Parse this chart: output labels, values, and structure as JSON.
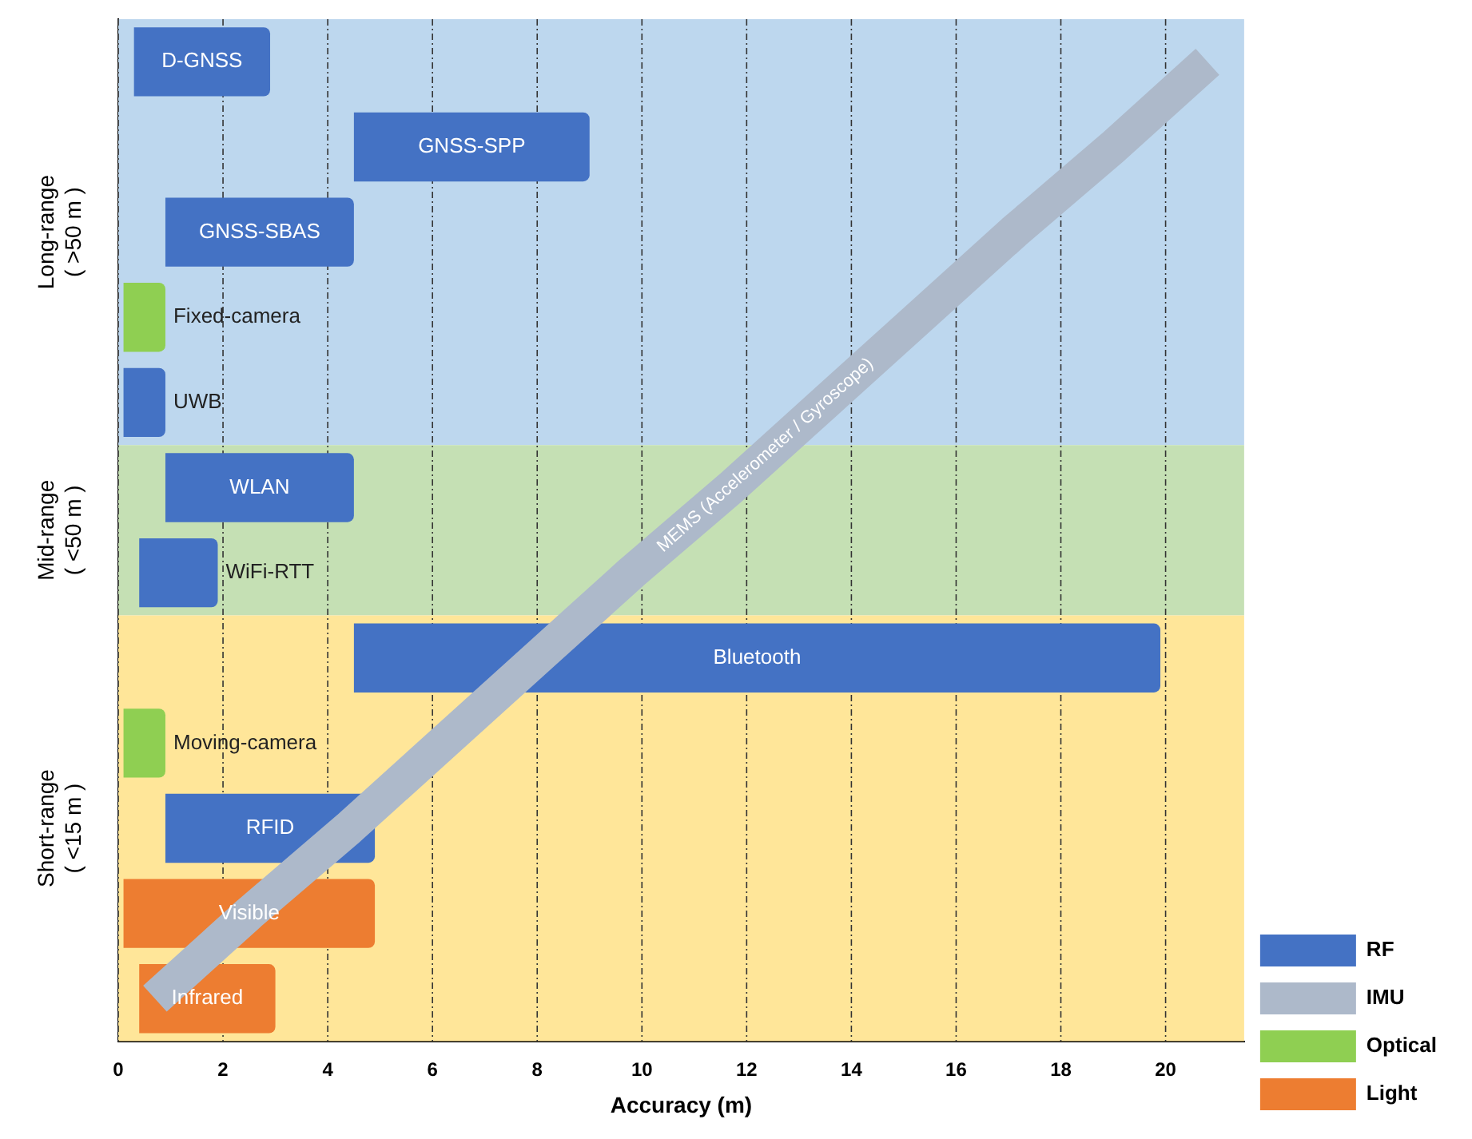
{
  "chart_data": {
    "type": "bar",
    "orientation": "horizontal",
    "xlabel": "Accuracy (m)",
    "categories": [
      "D-GNSS",
      "GNSS-SPP",
      "GNSS-SBAS",
      "Fixed-camera",
      "UWB",
      "WLAN",
      "WiFi-RTT",
      "Bluetooth",
      "Moving-camera",
      "RFID",
      "Visible",
      "Infrared"
    ],
    "series": [
      {
        "name": "RF",
        "color": "#4472c4",
        "base": [
          0.3,
          4.5,
          0.9,
          null,
          0.1,
          0.9,
          0.4,
          4.5,
          null,
          0.9,
          null,
          null
        ],
        "values": [
          2.6,
          4.5,
          3.6,
          null,
          0.8,
          3.6,
          1.5,
          15.4,
          null,
          4.0,
          null,
          null
        ]
      },
      {
        "name": "IMU",
        "color": "#adb9ca",
        "type": "line",
        "values": [
          20.8,
          19.0,
          17.1,
          15.3,
          13.5,
          11.7,
          9.8,
          8.0,
          6.2,
          4.4,
          2.5,
          0.7
        ]
      },
      {
        "name": "Optical",
        "color": "#8fcf52",
        "base": [
          null,
          null,
          null,
          0.1,
          null,
          null,
          null,
          null,
          0.1,
          null,
          null,
          null
        ],
        "values": [
          null,
          null,
          null,
          0.8,
          null,
          null,
          null,
          null,
          0.8,
          null,
          null,
          null
        ]
      },
      {
        "name": "Light",
        "color": "#ed7d31",
        "base": [
          null,
          null,
          null,
          null,
          null,
          null,
          null,
          null,
          null,
          null,
          0.1,
          0.4
        ],
        "values": [
          null,
          null,
          null,
          null,
          null,
          null,
          null,
          null,
          null,
          null,
          4.8,
          2.6
        ]
      }
    ],
    "xlim": [
      0,
      21.5
    ],
    "xticks": [
      0,
      2,
      4,
      6,
      8,
      10,
      12,
      14,
      16,
      18,
      20
    ],
    "tick_labels": "x",
    "grid": "x",
    "legend": "bottom right",
    "bands": [
      {
        "axis": "y",
        "from": "D-GNSS",
        "to": "UWB",
        "label": "Long-range ( >50 m )",
        "color": "#bdd7ee"
      },
      {
        "axis": "y",
        "from": "WLAN",
        "to": "WiFi-RTT",
        "label": "Mid-range ( <50 m )",
        "color": "#c5e0b4"
      },
      {
        "axis": "y",
        "from": "Bluetooth",
        "to": "Infrared",
        "label": "Short-range ( <15 m )",
        "color": "#ffe699"
      }
    ],
    "annotations": [
      "MEMS (Accelerometer / Gyroscope)"
    ]
  }
}
